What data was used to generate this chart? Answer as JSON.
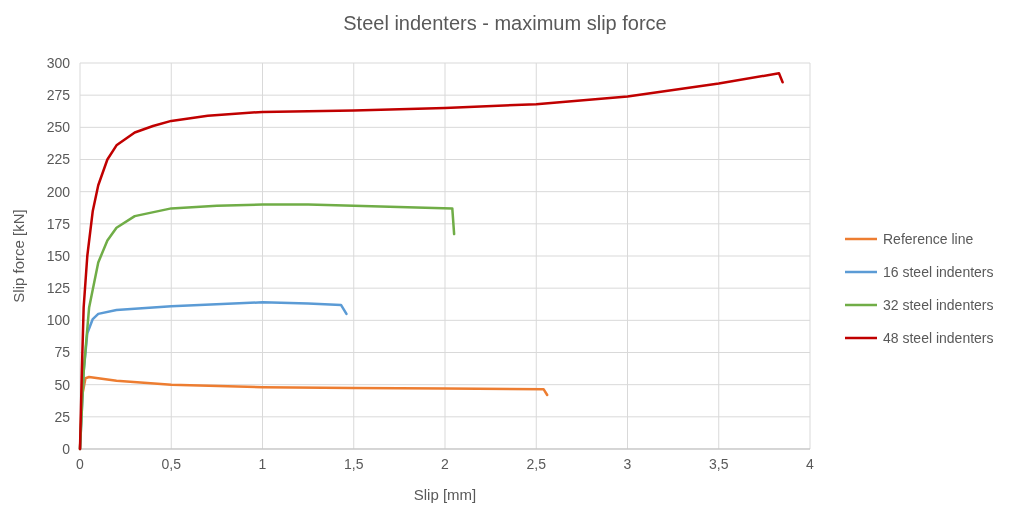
{
  "chart_data": {
    "type": "line",
    "title": "Steel indenters - maximum slip force",
    "xlabel": "Slip [mm]",
    "ylabel": "Slip force [kN]",
    "xlim": [
      0,
      4
    ],
    "ylim": [
      0,
      300
    ],
    "xticks": [
      0,
      {
        "value": 0.5,
        "label": "0,5"
      },
      1,
      {
        "value": 1.5,
        "label": "1,5"
      },
      2,
      {
        "value": 2.5,
        "label": "2,5"
      },
      3,
      {
        "value": 3.5,
        "label": "3,5"
      },
      4
    ],
    "yticks": [
      0,
      25,
      50,
      75,
      100,
      125,
      150,
      175,
      200,
      225,
      250,
      275,
      300
    ],
    "grid": true,
    "legend": "right",
    "line_style": "solid",
    "series": [
      {
        "name": "Reference line",
        "color": "#ed7d31",
        "x": [
          0,
          0.01,
          0.03,
          0.05,
          0.2,
          0.5,
          1,
          1.5,
          2,
          2.54,
          2.56
        ],
        "values": [
          0,
          40,
          55,
          56,
          53,
          50,
          48,
          47.5,
          47,
          46.5,
          42
        ]
      },
      {
        "name": "16 steel indenters",
        "color": "#5b9bd5",
        "x": [
          0,
          0.02,
          0.04,
          0.07,
          0.1,
          0.2,
          0.5,
          1,
          1.25,
          1.43,
          1.46
        ],
        "values": [
          0,
          60,
          90,
          101,
          105,
          108,
          111,
          114,
          113,
          112,
          105
        ]
      },
      {
        "name": "32 steel indenters",
        "color": "#70ad47",
        "x": [
          0,
          0.02,
          0.05,
          0.1,
          0.15,
          0.2,
          0.3,
          0.5,
          0.75,
          1,
          1.25,
          1.5,
          2.04,
          2.05
        ],
        "values": [
          0,
          60,
          110,
          145,
          162,
          172,
          181,
          187,
          189,
          190,
          190,
          189,
          187,
          167
        ]
      },
      {
        "name": "48 steel indenters",
        "color": "#c00000",
        "x": [
          0,
          0.01,
          0.02,
          0.04,
          0.07,
          0.1,
          0.15,
          0.2,
          0.3,
          0.4,
          0.5,
          0.7,
          1,
          1.5,
          2,
          2.5,
          3,
          3.5,
          3.83,
          3.85
        ],
        "values": [
          0,
          60,
          110,
          150,
          185,
          205,
          225,
          236,
          246,
          251,
          255,
          259,
          262,
          263,
          265,
          268,
          274,
          284,
          292,
          285
        ]
      }
    ]
  }
}
